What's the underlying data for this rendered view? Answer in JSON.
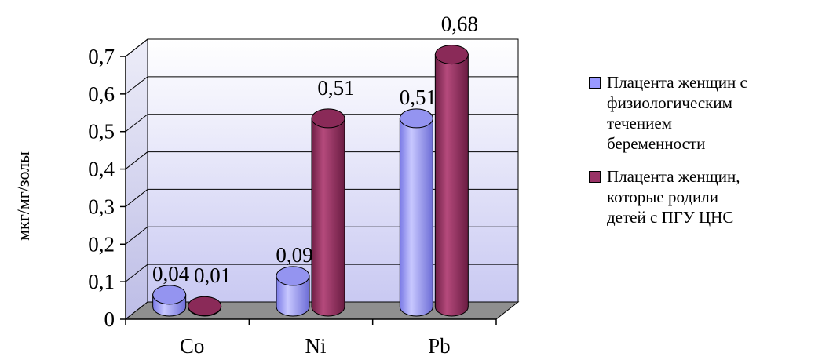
{
  "chart_data": {
    "type": "bar",
    "title": "",
    "xlabel": "",
    "ylabel": "мкг/мг/золы",
    "ylim": [
      0,
      0.7
    ],
    "yticks": [
      "0",
      "0,1",
      "0,2",
      "0,3",
      "0,4",
      "0,5",
      "0,6",
      "0,7"
    ],
    "categories": [
      "Co",
      "Ni",
      "Pb"
    ],
    "series": [
      {
        "name": "Плацента женщин с физиологическим течением беременности",
        "values": [
          0.04,
          0.09,
          0.51
        ],
        "labels": [
          "0,04",
          "0,09",
          "0,51"
        ],
        "color": "#9999ff"
      },
      {
        "name": "Плацента женщин, которые родили детей с ПГУ ЦНС",
        "values": [
          0.01,
          0.51,
          0.68
        ],
        "labels": [
          "0,01",
          "0,51",
          "0,68"
        ],
        "color": "#993366"
      }
    ],
    "legend_position": "right",
    "grid": true,
    "style": "3d-cylinder"
  },
  "legend": {
    "items": [
      {
        "lines": [
          "Плацента  женщин  с",
          "физиологическим",
          "течением",
          "беременности"
        ]
      },
      {
        "lines": [
          "Плацента  женщин,",
          "которые родили",
          "детей с ПГУ ЦНС"
        ]
      }
    ]
  }
}
